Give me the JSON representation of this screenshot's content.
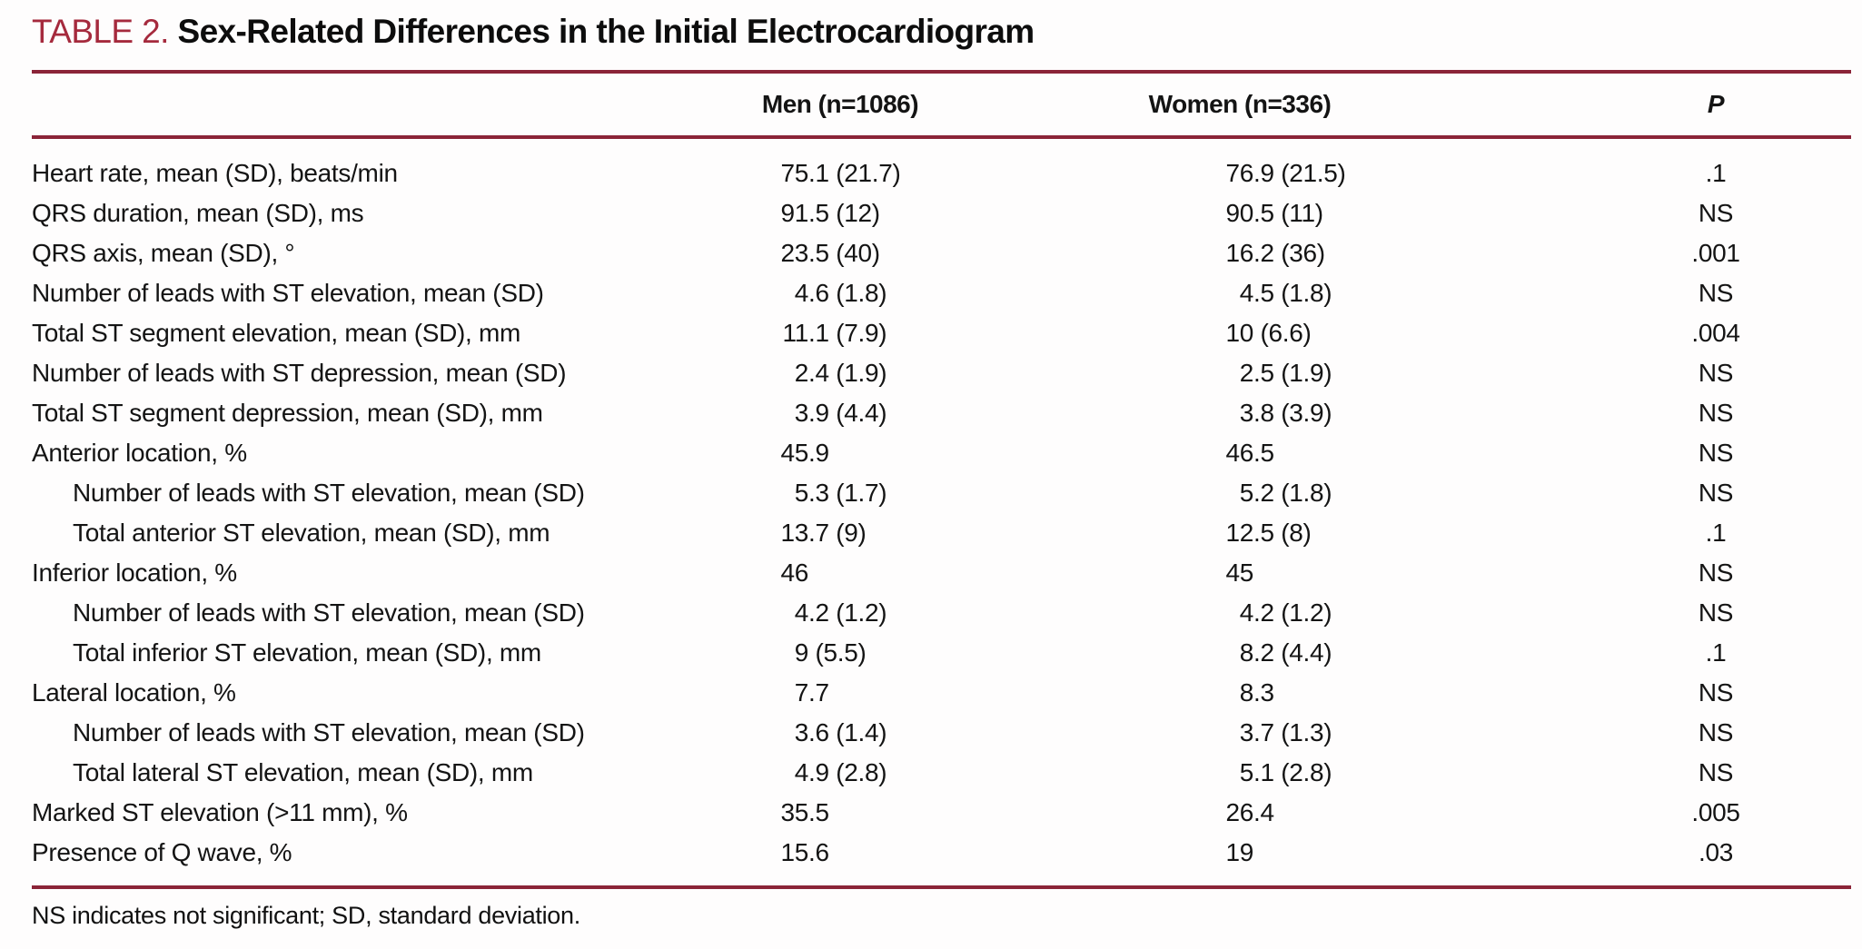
{
  "title": {
    "label": "TABLE 2.",
    "text": "Sex-Related Differences in the Initial Electrocardiogram"
  },
  "table": {
    "columns": {
      "label": "",
      "men": "Men (n=1086)",
      "women": "Women (n=336)",
      "p": "P"
    },
    "rows": [
      {
        "label": "Heart rate, mean (SD), beats/min",
        "indent": false,
        "men": "75.1 (21.7)",
        "women": "76.9 (21.5)",
        "p": ".1"
      },
      {
        "label": "QRS duration, mean (SD), ms",
        "indent": false,
        "men": "91.5 (12)",
        "women": "90.5 (11)",
        "p": "NS"
      },
      {
        "label": "QRS axis, mean (SD), °",
        "indent": false,
        "men": "23.5 (40)",
        "women": "16.2 (36)",
        "p": ".001"
      },
      {
        "label": "Number of leads with ST elevation, mean (SD)",
        "indent": false,
        "men": "4.6 (1.8)",
        "women": "4.5 (1.8)",
        "p": "NS"
      },
      {
        "label": "Total ST segment elevation, mean (SD), mm",
        "indent": false,
        "men": "11.1 (7.9)",
        "women": "10 (6.6)",
        "p": ".004"
      },
      {
        "label": "Number of leads with ST depression, mean (SD)",
        "indent": false,
        "men": "2.4 (1.9)",
        "women": "2.5 (1.9)",
        "p": "NS"
      },
      {
        "label": "Total ST segment depression, mean (SD), mm",
        "indent": false,
        "men": "3.9 (4.4)",
        "women": "3.8 (3.9)",
        "p": "NS"
      },
      {
        "label": "Anterior location, %",
        "indent": false,
        "men": "45.9",
        "women": "46.5",
        "p": "NS"
      },
      {
        "label": "Number of leads with ST elevation, mean (SD)",
        "indent": true,
        "men": "5.3 (1.7)",
        "women": "5.2 (1.8)",
        "p": "NS"
      },
      {
        "label": "Total anterior ST elevation, mean (SD), mm",
        "indent": true,
        "men": "13.7 (9)",
        "women": "12.5 (8)",
        "p": ".1"
      },
      {
        "label": "Inferior location, %",
        "indent": false,
        "men": "46",
        "women": "45",
        "p": "NS"
      },
      {
        "label": "Number of leads with ST elevation, mean (SD)",
        "indent": true,
        "men": "4.2 (1.2)",
        "women": "4.2 (1.2)",
        "p": "NS"
      },
      {
        "label": "Total inferior ST elevation, mean (SD), mm",
        "indent": true,
        "men": "9 (5.5)",
        "women": "8.2 (4.4)",
        "p": ".1"
      },
      {
        "label": "Lateral location, %",
        "indent": false,
        "men": "7.7",
        "women": "8.3",
        "p": "NS"
      },
      {
        "label": "Number of leads with ST elevation, mean (SD)",
        "indent": true,
        "men": "3.6 (1.4)",
        "women": "3.7 (1.3)",
        "p": "NS"
      },
      {
        "label": "Total lateral ST elevation, mean (SD), mm",
        "indent": true,
        "men": "4.9 (2.8)",
        "women": "5.1 (2.8)",
        "p": "NS"
      },
      {
        "label": "Marked ST elevation (>11 mm), %",
        "indent": false,
        "men": "35.5",
        "women": "26.4",
        "p": ".005"
      },
      {
        "label": "Presence of Q wave, %",
        "indent": false,
        "men": "15.6",
        "women": "19",
        "p": ".03"
      }
    ]
  },
  "footnote": "NS indicates not significant; SD, standard deviation.",
  "colors": {
    "rule": "#8b2438",
    "title_accent": "#a52a3d",
    "text": "#141414"
  }
}
